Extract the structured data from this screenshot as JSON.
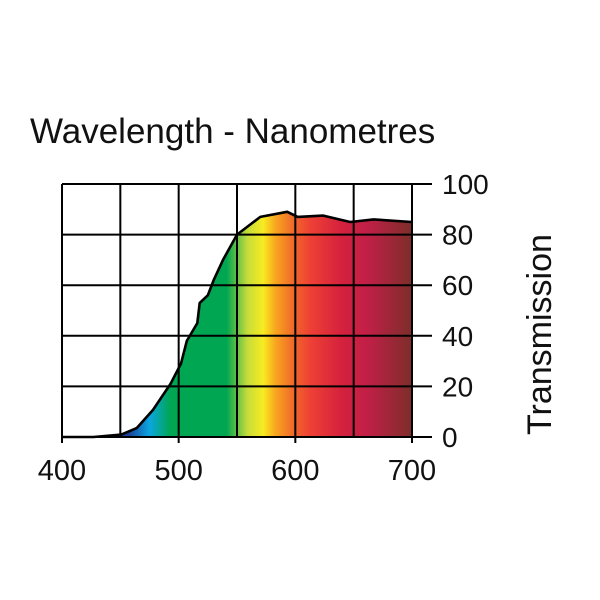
{
  "chart_data": {
    "type": "area",
    "title": "Wavelength - Nanometres",
    "xlabel": "Wavelength - Nanometres",
    "ylabel": "Transmission",
    "xlim": [
      400,
      700
    ],
    "ylim": [
      0,
      100
    ],
    "x_ticks": [
      400,
      500,
      600,
      700
    ],
    "x_tick_labels": [
      "400",
      "500",
      "600",
      "700"
    ],
    "x_grid": [
      400,
      450,
      500,
      550,
      600,
      650,
      700
    ],
    "y_ticks": [
      0,
      20,
      40,
      60,
      80,
      100
    ],
    "y_tick_labels": [
      "0",
      "20",
      "40",
      "60",
      "80",
      "100"
    ],
    "grid": true,
    "fill": "visible-spectrum gradient",
    "series": [
      {
        "name": "Transmission",
        "x": [
          400,
          427,
          451,
          464,
          478,
          493,
          502,
          507,
          516,
          518,
          525,
          530,
          538,
          550,
          570,
          593,
          602,
          624,
          647,
          667,
          700
        ],
        "y": [
          0,
          0,
          1,
          3.5,
          10.7,
          21,
          29,
          38,
          45,
          53,
          56,
          62,
          70,
          80,
          87,
          89,
          87,
          87.5,
          85,
          86,
          85
        ]
      }
    ],
    "spectrum_colors": [
      "#1a3f9a",
      "#0aa6e0",
      "#00a651",
      "#00a651",
      "#f7ec21",
      "#f7941d",
      "#ee4035",
      "#d4213d",
      "#c21f47",
      "#7d2e2a"
    ]
  }
}
